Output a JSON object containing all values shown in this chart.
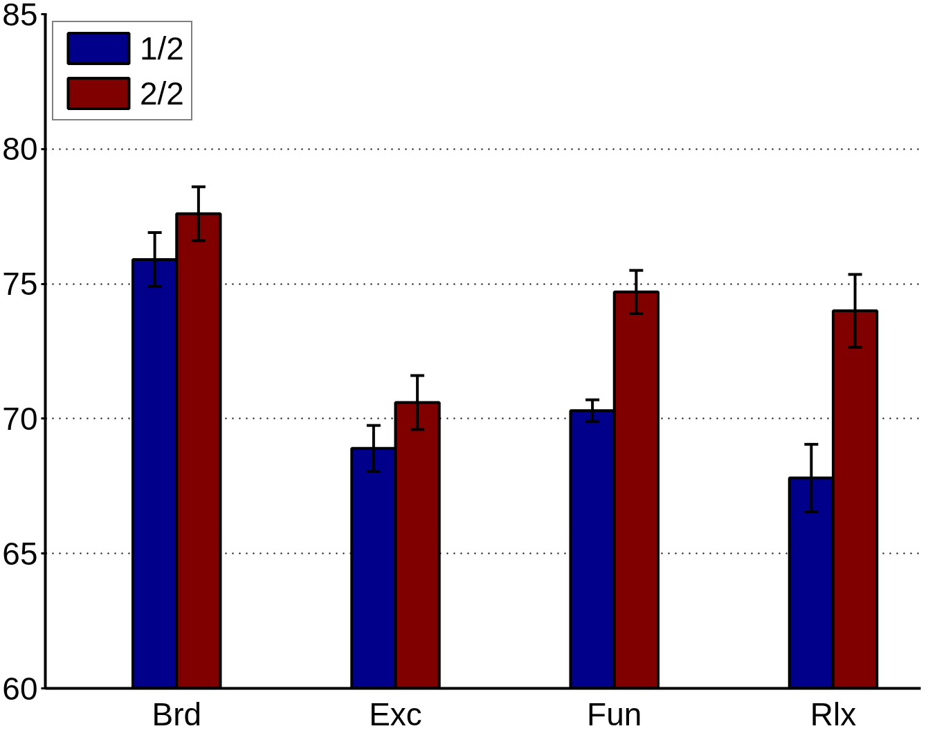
{
  "chart_data": {
    "type": "bar",
    "categories": [
      "Brd",
      "Exc",
      "Fun",
      "Rlx"
    ],
    "ylim": [
      60,
      85
    ],
    "yticks": [
      60,
      65,
      70,
      75,
      80,
      85
    ],
    "series": [
      {
        "name": "1/2",
        "color": "#00008b",
        "values": [
          75.9,
          68.9,
          70.3,
          67.8
        ],
        "errors": [
          1.0,
          0.85,
          0.4,
          1.25
        ]
      },
      {
        "name": "2/2",
        "color": "#800000",
        "values": [
          77.6,
          70.6,
          74.7,
          74.0
        ],
        "errors": [
          1.0,
          1.0,
          0.8,
          1.35
        ]
      }
    ],
    "grid": "y",
    "legend": "top left"
  }
}
